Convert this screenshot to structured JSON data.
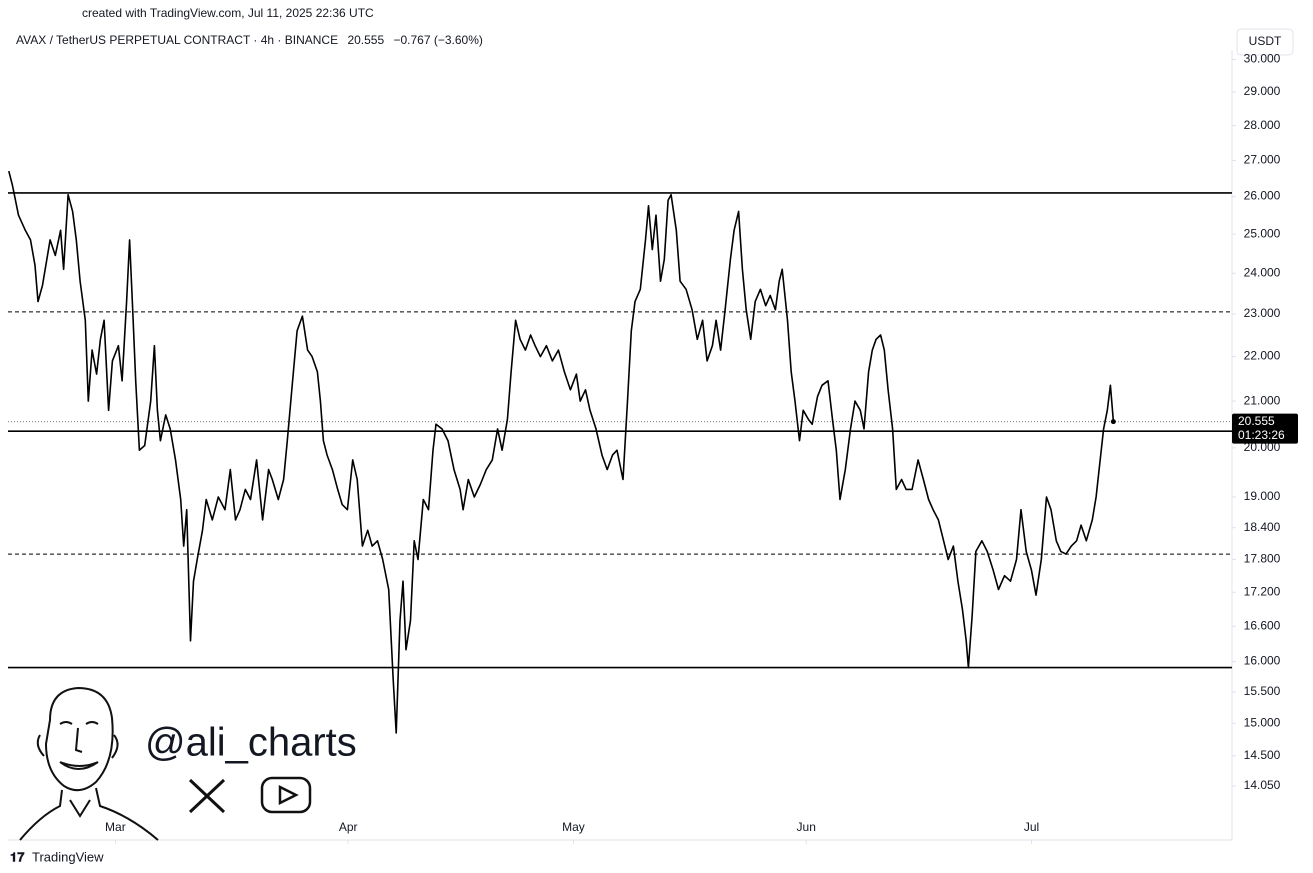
{
  "chart_data": {
    "type": "line",
    "credit": "created with TradingView.com, Jul 11, 2025 22:36 UTC",
    "symbol": "AVAX / TetherUS PERPETUAL CONTRACT · 4h · BINANCE",
    "change": "−0.767 (−3.60%)",
    "currency": "USDT",
    "countdown": "01:23:26",
    "watermark": "@ali_charts",
    "brand": "TradingView",
    "color": "#000000",
    "log_scale": true,
    "grid": false,
    "x": [
      -14.2,
      -13.7,
      -12.9,
      -12.0,
      -11.3,
      -10.7,
      -10.3,
      -9.7,
      -8.7,
      -8.0,
      -7.3,
      -6.9,
      -6.3,
      -5.7,
      -5.2,
      -4.7,
      -4.0,
      -3.6,
      -3.1,
      -2.5,
      -2.0,
      -1.5,
      -0.9,
      -0.4,
      0.4,
      0.9,
      1.5,
      1.9,
      2.3,
      2.7,
      3.2,
      3.9,
      4.7,
      5.2,
      5.6,
      6.0,
      6.7,
      7.3,
      8.0,
      8.7,
      9.1,
      9.5,
      10.0,
      10.4,
      10.9,
      11.6,
      12.1,
      12.9,
      13.7,
      14.6,
      15.3,
      16.0,
      16.6,
      17.3,
      18.0,
      18.8,
      19.6,
      20.4,
      20.9,
      21.7,
      22.4,
      22.9,
      23.6,
      24.2,
      24.9,
      25.6,
      26.2,
      26.9,
      27.3,
      27.7,
      28.2,
      28.9,
      29.6,
      30.2,
      30.9,
      31.6,
      32.2,
      32.9,
      33.6,
      34.2,
      34.9,
      35.6,
      36.4,
      37.0,
      37.4,
      37.9,
      38.3,
      38.7,
      39.3,
      39.8,
      40.3,
      41.0,
      41.7,
      42.3,
      42.7,
      43.5,
      44.3,
      45.1,
      45.9,
      46.3,
      47.0,
      47.8,
      48.6,
      49.4,
      50.2,
      50.9,
      51.5,
      52.2,
      52.7,
      53.3,
      53.9,
      54.6,
      55.3,
      55.9,
      56.6,
      57.4,
      58.2,
      59.0,
      59.8,
      60.6,
      61.4,
      61.9,
      62.6,
      63.2,
      64.0,
      64.8,
      65.5,
      66.2,
      66.8,
      67.6,
      68.2,
      68.7,
      69.2,
      69.9,
      70.6,
      71.0,
      71.5,
      72.0,
      72.6,
      73.1,
      73.6,
      74.0,
      74.7,
      75.2,
      76.0,
      76.8,
      77.5,
      78.2,
      78.8,
      79.5,
      80.0,
      80.6,
      81.2,
      81.9,
      82.4,
      83.0,
      83.5,
      84.0,
      84.6,
      85.2,
      85.9,
      86.6,
      87.2,
      87.9,
      88.4,
      88.8,
      89.5,
      90.0,
      90.5,
      91.1,
      91.6,
      92.3,
      92.8,
      93.5,
      94.1,
      94.9,
      95.5,
      96.0,
      96.5,
      97.2,
      97.9,
      98.5,
      99.2,
      99.7,
      100.3,
      100.8,
      101.3,
      101.9,
      102.4,
      102.9,
      103.5,
      104.0,
      104.7,
      105.3,
      106.1,
      106.9,
      107.6,
      108.3,
      108.9,
      109.6,
      110.3,
      110.9,
      111.6,
      112.2,
      112.8,
      113.3,
      113.6,
      114.1,
      114.6,
      115.4,
      116.1,
      116.9,
      117.6,
      118.4,
      119.2,
      120.0,
      120.6,
      121.3,
      122.0,
      122.6,
      123.3,
      124.0,
      124.6,
      125.3,
      125.9,
      126.6,
      127.3,
      128.0,
      128.6,
      129.3,
      130.1,
      130.6,
      131.0,
      131.6,
      132.1,
      132.5,
      132.9
    ],
    "values": [
      26.7,
      26.3,
      25.5,
      25.1,
      24.85,
      24.2,
      23.3,
      23.7,
      24.85,
      24.45,
      25.1,
      24.1,
      26.05,
      25.6,
      24.85,
      23.8,
      22.85,
      21.0,
      22.15,
      21.6,
      22.4,
      22.85,
      20.8,
      21.9,
      22.25,
      21.45,
      23.3,
      24.85,
      23.1,
      21.45,
      19.95,
      20.05,
      21.0,
      22.25,
      20.8,
      20.15,
      20.7,
      20.4,
      19.75,
      18.95,
      18.05,
      18.75,
      16.35,
      17.4,
      17.8,
      18.35,
      18.95,
      18.55,
      19.0,
      18.75,
      19.55,
      18.55,
      18.75,
      19.15,
      18.95,
      19.75,
      18.55,
      19.55,
      19.35,
      18.95,
      19.35,
      20.15,
      21.45,
      22.6,
      22.95,
      22.15,
      22.0,
      21.65,
      21.0,
      20.15,
      19.85,
      19.55,
      19.15,
      18.85,
      18.75,
      19.75,
      19.35,
      18.05,
      18.35,
      18.05,
      18.15,
      17.8,
      17.25,
      15.7,
      14.85,
      16.7,
      17.4,
      16.2,
      16.7,
      18.15,
      17.8,
      18.95,
      18.75,
      19.95,
      20.5,
      20.4,
      20.15,
      19.55,
      19.15,
      18.75,
      19.35,
      19.0,
      19.25,
      19.55,
      19.75,
      20.4,
      19.95,
      20.6,
      21.65,
      22.85,
      22.4,
      22.15,
      22.5,
      22.25,
      22.0,
      22.25,
      21.9,
      22.15,
      21.65,
      21.25,
      21.6,
      21.0,
      21.25,
      20.8,
      20.4,
      19.85,
      19.55,
      19.85,
      19.95,
      19.35,
      21.0,
      22.6,
      23.3,
      23.6,
      24.85,
      25.75,
      24.6,
      25.5,
      23.8,
      24.35,
      25.9,
      26.05,
      25.1,
      23.8,
      23.6,
      23.1,
      22.4,
      22.85,
      21.9,
      22.25,
      22.85,
      22.15,
      23.1,
      24.35,
      25.1,
      25.6,
      24.1,
      23.1,
      22.4,
      23.3,
      23.6,
      23.2,
      23.45,
      23.1,
      23.8,
      24.1,
      22.85,
      21.65,
      21.0,
      20.15,
      20.8,
      20.6,
      20.5,
      21.1,
      21.35,
      21.45,
      20.6,
      19.95,
      18.95,
      19.55,
      20.4,
      21.0,
      20.8,
      20.4,
      21.65,
      22.15,
      22.4,
      22.5,
      22.15,
      21.25,
      20.4,
      19.15,
      19.35,
      19.15,
      19.15,
      19.75,
      19.35,
      18.95,
      18.75,
      18.55,
      18.15,
      17.8,
      18.05,
      17.4,
      16.9,
      16.35,
      15.9,
      16.8,
      17.95,
      18.15,
      17.95,
      17.6,
      17.25,
      17.5,
      17.4,
      17.8,
      18.75,
      17.95,
      17.6,
      17.15,
      17.8,
      19.0,
      18.75,
      18.15,
      17.95,
      17.9,
      18.05,
      18.15,
      18.45,
      18.15,
      18.55,
      19.0,
      19.55,
      20.4,
      20.8,
      21.35,
      20.555
    ],
    "levels": [
      {
        "value": 26.1,
        "style": "solid"
      },
      {
        "value": 23.05,
        "style": "dashed"
      },
      {
        "value": 20.35,
        "style": "solid"
      },
      {
        "value": 17.9,
        "style": "dashed"
      },
      {
        "value": 15.9,
        "style": "solid"
      }
    ],
    "xlim": [
      -14.3,
      148.7
    ],
    "xticks": [
      {
        "value": 0,
        "label": "Mar"
      },
      {
        "value": 31,
        "label": "Apr"
      },
      {
        "value": 61,
        "label": "May"
      },
      {
        "value": 92,
        "label": "Jun"
      },
      {
        "value": 122,
        "label": "Jul"
      }
    ],
    "ylim": [
      13.28,
      30.3
    ],
    "yticks": [
      {
        "value": 30,
        "label": "30.000"
      },
      {
        "value": 29,
        "label": "29.000"
      },
      {
        "value": 28,
        "label": "28.000"
      },
      {
        "value": 27,
        "label": "27.000"
      },
      {
        "value": 26,
        "label": "26.000"
      },
      {
        "value": 25,
        "label": "25.000"
      },
      {
        "value": 24,
        "label": "24.000"
      },
      {
        "value": 23,
        "label": "23.000"
      },
      {
        "value": 22,
        "label": "22.000"
      },
      {
        "value": 21,
        "label": "21.000"
      },
      {
        "value": 20,
        "label": "20.000"
      },
      {
        "value": 19,
        "label": "19.000"
      },
      {
        "value": 18.4,
        "label": "18.400"
      },
      {
        "value": 17.8,
        "label": "17.800"
      },
      {
        "value": 17.2,
        "label": "17.200"
      },
      {
        "value": 16.6,
        "label": "16.600"
      },
      {
        "value": 16,
        "label": "16.000"
      },
      {
        "value": 15.5,
        "label": "15.500"
      },
      {
        "value": 15,
        "label": "15.000"
      },
      {
        "value": 14.5,
        "label": "14.500"
      },
      {
        "value": 14.05,
        "label": "14.050"
      }
    ]
  }
}
